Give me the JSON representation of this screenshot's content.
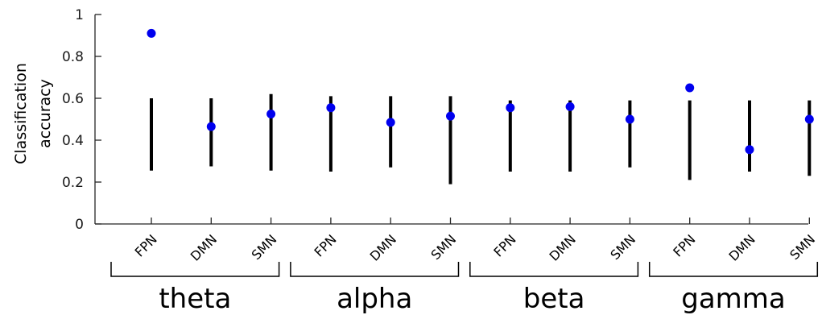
{
  "chart_data": {
    "type": "scatter",
    "ylabel": [
      "Classification",
      "accuracy"
    ],
    "ylim": [
      0,
      1
    ],
    "yticks": [
      0,
      0.2,
      0.4,
      0.6,
      0.8,
      1
    ],
    "ytick_labels": [
      "0",
      "0.2",
      "0.4",
      "0.6",
      "0.8",
      "1"
    ],
    "categories": [
      "FPN",
      "DMN",
      "SMN",
      "FPN",
      "DMN",
      "SMN",
      "FPN",
      "DMN",
      "SMN",
      "FPN",
      "DMN",
      "SMN"
    ],
    "groups": [
      {
        "label": "theta",
        "count": 3
      },
      {
        "label": "alpha",
        "count": 3
      },
      {
        "label": "beta",
        "count": 3
      },
      {
        "label": "gamma",
        "count": 3
      }
    ],
    "series": [
      {
        "values": [
          0.91,
          0.465,
          0.525,
          0.555,
          0.485,
          0.515,
          0.555,
          0.56,
          0.5,
          0.65,
          0.355,
          0.5
        ],
        "color": "#0000ee"
      }
    ],
    "ranges": [
      [
        0.255,
        0.6
      ],
      [
        0.275,
        0.6
      ],
      [
        0.255,
        0.62
      ],
      [
        0.25,
        0.61
      ],
      [
        0.27,
        0.61
      ],
      [
        0.19,
        0.61
      ],
      [
        0.25,
        0.59
      ],
      [
        0.25,
        0.59
      ],
      [
        0.27,
        0.59
      ],
      [
        0.21,
        0.59
      ],
      [
        0.25,
        0.59
      ],
      [
        0.23,
        0.59
      ]
    ],
    "range_color": "#000000",
    "grid": false,
    "legend": "none"
  }
}
